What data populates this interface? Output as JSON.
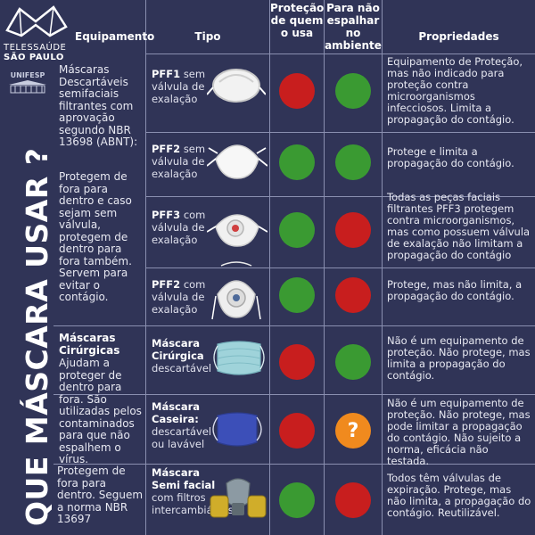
{
  "logo": {
    "line1": "TELESSAÚDE",
    "line2": "SÃO PAULO",
    "unifesp": "UNIFESP"
  },
  "vertical_title": "QUE MÁSCARA USAR ?",
  "headers": {
    "equipamento": "Equipamento",
    "tipo": "Tipo",
    "protecao": "Proteção de quem o usa",
    "espalhar": "Para não espalhar no ambiente",
    "propriedades": "Propriedades"
  },
  "colors": {
    "red": "#c81e1e",
    "green": "#3a9a32",
    "orange": "#f08a1e",
    "bg": "#303457"
  },
  "groups": [
    {
      "text_a": "Máscaras Descartáveis semifaciais filtrantes com aprovação segundo NBR 13698 (ABNT):",
      "text_b": "Protegem de fora para dentro e caso sejam sem válvula, protegem de dentro para fora também. Servem para evitar o contágio."
    },
    {
      "title": "Máscaras Cirúrgicas",
      "text": "Ajudam a proteger de dentro para fora. São utilizadas pelos contaminados para que não espalhem o vírus."
    },
    {
      "text": "Protegem de fora para dentro. Seguem a norma NBR 13697"
    }
  ],
  "rows": [
    {
      "name": "PFF1",
      "desc": "sem válvula de exalação",
      "icon": "pff1-mask-icon",
      "protect": "red",
      "spread": "green",
      "prop": "Equipamento de Proteção, mas não indicado para proteção contra microorganismos infecciosos. Limita a propagação do contágio."
    },
    {
      "name": "PFF2",
      "desc": "sem válvula de exalação",
      "icon": "pff2-mask-icon",
      "protect": "green",
      "spread": "green",
      "prop": "Protege e limita a propagação do contágio."
    },
    {
      "name": "PFF3",
      "desc": "com válvula de exalação",
      "icon": "pff3-valve-mask-icon",
      "protect": "green",
      "spread": "red",
      "prop": "Todas as peças faciais filtrantes PFF3 protegem  contra microorganismos, mas como possuem válvula de exalação não limitam a propagação do contágio"
    },
    {
      "name": "PFF2",
      "desc": "com válvula de exalação",
      "icon": "pff2-valve-mask-icon",
      "protect": "green",
      "spread": "red",
      "prop": "Protege, mas não limita, a propagação do contágio."
    },
    {
      "name": "Máscara Cirúrgica",
      "desc": "descartável",
      "icon": "surgical-mask-icon",
      "protect": "red",
      "spread": "green",
      "prop": "Não é um equipamento de proteção. Não protege, mas limita a propagação do contágio."
    },
    {
      "name": "Máscara Caseira:",
      "desc": "descartável ou lavável",
      "icon": "cloth-mask-icon",
      "protect": "red",
      "spread": "orange",
      "spread_symbol": "?",
      "prop": "Não é um equipamento de proteção. Não protege, mas pode limitar a propagação do contágio. Não sujeito a norma, eficácia não testada."
    },
    {
      "name": "Máscara Semi facial",
      "desc": "com filtros intercambiáveis",
      "icon": "respirator-mask-icon",
      "protect": "green",
      "spread": "red",
      "prop": "Todos têm válvulas de expiração. Protege, mas não limita, a propagação do contágio. Reutilizável."
    }
  ]
}
